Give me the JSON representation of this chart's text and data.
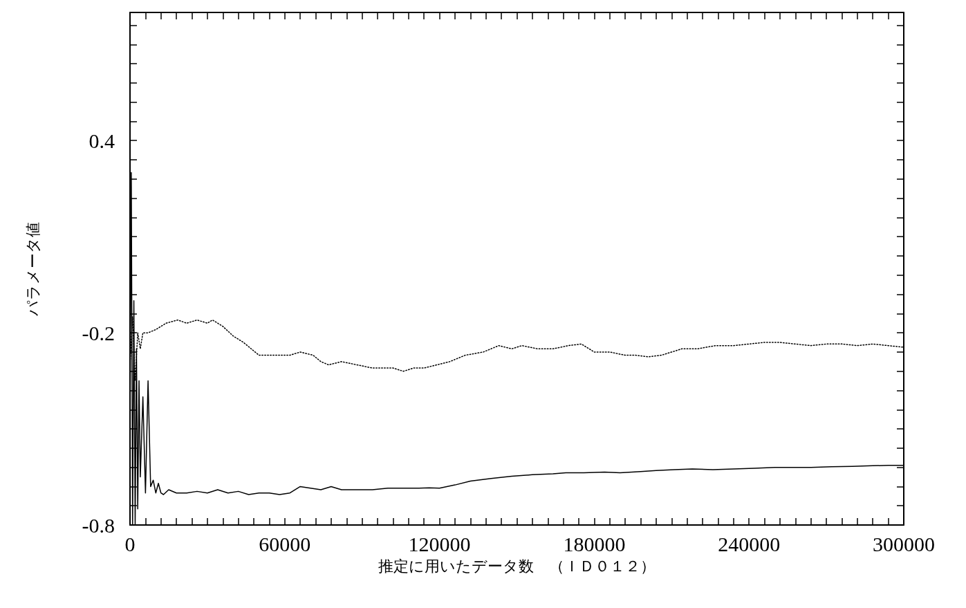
{
  "chart_data": {
    "type": "line",
    "xlabel": "推定に用いたデータ数　（ＩＤ０１２）",
    "ylabel": "パラメータ値",
    "xlim": [
      0,
      300000
    ],
    "ylim": [
      -0.8,
      0.8
    ],
    "xticks": [
      0,
      {
        "value": 6000,
        "label": null
      },
      {
        "value": 12000,
        "label": null
      },
      {
        "value": 18000,
        "label": null
      },
      {
        "value": 24000,
        "label": null
      },
      {
        "value": 30000,
        "label": null
      },
      {
        "value": 36000,
        "label": null
      },
      {
        "value": 42000,
        "label": null
      },
      {
        "value": 48000,
        "label": null
      },
      {
        "value": 54000,
        "label": null
      },
      60000,
      {
        "value": 66000,
        "label": null
      },
      {
        "value": 72000,
        "label": null
      },
      {
        "value": 78000,
        "label": null
      },
      {
        "value": 84000,
        "label": null
      },
      {
        "value": 90000,
        "label": null
      },
      {
        "value": 96000,
        "label": null
      },
      {
        "value": 102000,
        "label": null
      },
      {
        "value": 108000,
        "label": null
      },
      {
        "value": 114000,
        "label": null
      },
      120000,
      {
        "value": 126000,
        "label": null
      },
      {
        "value": 132000,
        "label": null
      },
      {
        "value": 138000,
        "label": null
      },
      {
        "value": 144000,
        "label": null
      },
      {
        "value": 150000,
        "label": null
      },
      {
        "value": 156000,
        "label": null
      },
      {
        "value": 162000,
        "label": null
      },
      {
        "value": 168000,
        "label": null
      },
      {
        "value": 174000,
        "label": null
      },
      180000,
      {
        "value": 186000,
        "label": null
      },
      {
        "value": 192000,
        "label": null
      },
      {
        "value": 198000,
        "label": null
      },
      {
        "value": 204000,
        "label": null
      },
      {
        "value": 210000,
        "label": null
      },
      {
        "value": 216000,
        "label": null
      },
      {
        "value": 222000,
        "label": null
      },
      {
        "value": 228000,
        "label": null
      },
      {
        "value": 234000,
        "label": null
      },
      240000,
      {
        "value": 246000,
        "label": null
      },
      {
        "value": 252000,
        "label": null
      },
      {
        "value": 258000,
        "label": null
      },
      {
        "value": 264000,
        "label": null
      },
      {
        "value": 270000,
        "label": null
      },
      {
        "value": 276000,
        "label": null
      },
      {
        "value": 282000,
        "label": null
      },
      {
        "value": 288000,
        "label": null
      },
      {
        "value": 294000,
        "label": null
      },
      300000
    ],
    "yticks": [
      -0.8,
      {
        "value": -0.74,
        "label": null
      },
      {
        "value": -0.68,
        "label": null
      },
      {
        "value": -0.62,
        "label": null
      },
      {
        "value": -0.56,
        "label": null
      },
      {
        "value": -0.5,
        "label": null
      },
      {
        "value": -0.44,
        "label": null
      },
      {
        "value": -0.38,
        "label": null
      },
      {
        "value": -0.32,
        "label": null
      },
      {
        "value": -0.26,
        "label": null
      },
      -0.2,
      {
        "value": -0.14,
        "label": null
      },
      {
        "value": -0.08,
        "label": null
      },
      {
        "value": -0.02,
        "label": null
      },
      {
        "value": 0.04,
        "label": null
      },
      {
        "value": 0.1,
        "label": null
      },
      {
        "value": 0.16,
        "label": null
      },
      {
        "value": 0.22,
        "label": null
      },
      {
        "value": 0.28,
        "label": null
      },
      {
        "value": 0.34,
        "label": null
      },
      0.4,
      {
        "value": 0.46,
        "label": null
      },
      {
        "value": 0.52,
        "label": null
      },
      {
        "value": 0.58,
        "label": null
      },
      {
        "value": 0.64,
        "label": null
      },
      {
        "value": 0.7,
        "label": null
      },
      {
        "value": 0.76,
        "label": null
      }
    ],
    "grid": false,
    "marker": "none",
    "series": [
      {
        "color": "#000000",
        "line_style": "dotted",
        "x": [
          0,
          1000,
          2000,
          3000,
          4000,
          5000,
          7000,
          10000,
          14000,
          18500,
          22000,
          26000,
          30000,
          32000,
          36000,
          40000,
          44000,
          50000,
          56000,
          62000,
          66000,
          71000,
          74000,
          77000,
          82000,
          88000,
          94000,
          98000,
          102000,
          106000,
          110000,
          114000,
          119000,
          124000,
          130000,
          137000,
          143000,
          148000,
          152000,
          158000,
          164000,
          170000,
          175000,
          180000,
          186000,
          192000,
          196000,
          201000,
          206000,
          210000,
          214000,
          220000,
          227000,
          234000,
          240000,
          246000,
          252000,
          258000,
          264000,
          270000,
          276000,
          282000,
          288000,
          294000,
          300000
        ],
        "values": [
          -0.3,
          -0.15,
          -0.35,
          -0.2,
          -0.25,
          -0.2,
          -0.2,
          -0.19,
          -0.17,
          -0.16,
          -0.17,
          -0.16,
          -0.17,
          -0.16,
          -0.18,
          -0.21,
          -0.23,
          -0.27,
          -0.27,
          -0.27,
          -0.26,
          -0.27,
          -0.29,
          -0.3,
          -0.29,
          -0.3,
          -0.31,
          -0.31,
          -0.31,
          -0.32,
          -0.31,
          -0.31,
          -0.3,
          -0.29,
          -0.27,
          -0.26,
          -0.24,
          -0.25,
          -0.24,
          -0.25,
          -0.25,
          -0.24,
          -0.235,
          -0.26,
          -0.26,
          -0.27,
          -0.27,
          -0.275,
          -0.27,
          -0.26,
          -0.25,
          -0.25,
          -0.24,
          -0.24,
          -0.235,
          -0.23,
          -0.23,
          -0.235,
          -0.24,
          -0.235,
          -0.235,
          -0.24,
          -0.235,
          -0.24,
          -0.245
        ]
      },
      {
        "color": "#000000",
        "line_style": "solid",
        "x": [
          0,
          500,
          1000,
          1500,
          2000,
          2500,
          3000,
          3500,
          4000,
          5000,
          6000,
          7000,
          8000,
          9000,
          10000,
          11000,
          12000,
          13000,
          15000,
          18000,
          22000,
          26000,
          30000,
          34000,
          38000,
          42000,
          46000,
          50000,
          54000,
          58000,
          62000,
          66000,
          70000,
          74000,
          78000,
          82000,
          88000,
          94000,
          100000,
          106000,
          112000,
          116000,
          120000,
          126000,
          132000,
          140000,
          148000,
          156000,
          164000,
          169000,
          176000,
          184000,
          190000,
          198000,
          204000,
          211000,
          218000,
          226000,
          234000,
          242000,
          250000,
          256000,
          264000,
          272000,
          280000,
          288000,
          294000,
          300000
        ],
        "values": [
          -0.5,
          0.3,
          -0.8,
          -0.1,
          -0.8,
          -0.25,
          -0.75,
          -0.35,
          -0.65,
          -0.4,
          -0.7,
          -0.35,
          -0.68,
          -0.66,
          -0.7,
          -0.67,
          -0.7,
          -0.705,
          -0.69,
          -0.7,
          -0.7,
          -0.695,
          -0.7,
          -0.69,
          -0.7,
          -0.695,
          -0.705,
          -0.7,
          -0.7,
          -0.705,
          -0.7,
          -0.68,
          -0.685,
          -0.69,
          -0.68,
          -0.69,
          -0.69,
          -0.69,
          -0.685,
          -0.685,
          -0.685,
          -0.684,
          -0.685,
          -0.675,
          -0.663,
          -0.655,
          -0.648,
          -0.643,
          -0.64,
          -0.637,
          -0.637,
          -0.635,
          -0.637,
          -0.633,
          -0.63,
          -0.627,
          -0.625,
          -0.627,
          -0.625,
          -0.623,
          -0.62,
          -0.62,
          -0.62,
          -0.618,
          -0.617,
          -0.615,
          -0.614,
          -0.614
        ]
      }
    ]
  }
}
